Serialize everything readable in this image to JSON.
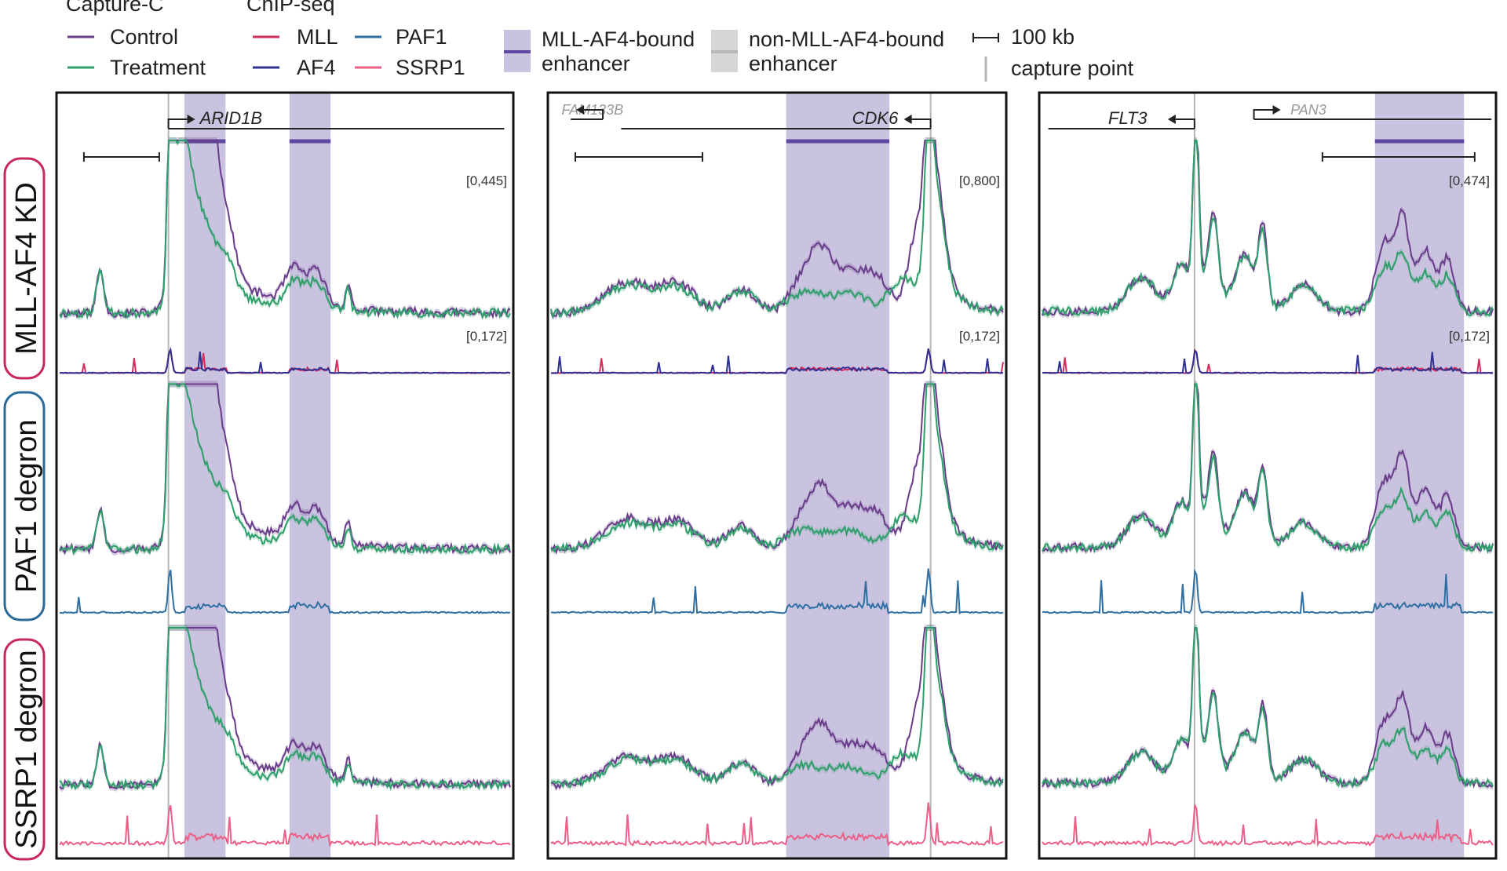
{
  "legend": {
    "capture_c_title": "Capture-C",
    "capture_c_items": [
      {
        "label": "Control",
        "color": "#6a3d8a"
      },
      {
        "label": "Treatment",
        "color": "#2e9e6a"
      }
    ],
    "chip_title": "ChIP-seq",
    "chip_items": [
      {
        "label": "MLL",
        "color": "#d42f5c"
      },
      {
        "label": "PAF1",
        "color": "#2f6fa3"
      },
      {
        "label": "AF4",
        "color": "#2e3192"
      },
      {
        "label": "SSRP1",
        "color": "#ec5f86"
      }
    ],
    "enhancer_bound_line1": "MLL-AF4-bound",
    "enhancer_bound_line2": "enhancer",
    "enhancer_nonbound_line1": "non-MLL-AF4-bound",
    "enhancer_nonbound_line2": "enhancer",
    "scale_label": "100 kb",
    "capture_point_label": "capture point"
  },
  "colors": {
    "control": "#6a3d8a",
    "treatment": "#2e9e6a",
    "mll": "#d42f5c",
    "af4": "#2e3192",
    "paf1": "#2f6fa3",
    "ssrp1": "#ec5f86",
    "enhancer_bound": "#c9c3df",
    "enhancer_line": "#5e48a0",
    "nonbound": "#d6d6d6",
    "row_kd": "#c8285a",
    "row_paf1": "#2a6a96",
    "row_ssrp1": "#c8285a"
  },
  "rows": [
    {
      "label": "MLL-AF4 KD",
      "chip": [
        "mll",
        "af4"
      ]
    },
    {
      "label": "PAF1 degron",
      "chip": [
        "paf1"
      ]
    },
    {
      "label": "SSRP1 degron",
      "chip": [
        "ssrp1"
      ]
    }
  ],
  "chart_data": [
    {
      "type": "line",
      "locus": "ARID1B",
      "genes": [
        {
          "name": "ARID1B",
          "strand": "+",
          "minor": false
        }
      ],
      "capture_c_range": "[0,445]",
      "chip_range": "[0,172]",
      "capture_point": 0.245,
      "enhancers": [
        [
          0.28,
          0.37
        ],
        [
          0.51,
          0.6
        ]
      ],
      "series": [
        {
          "name": "Control",
          "shape": "arid1b_ctrl"
        },
        {
          "name": "Treatment",
          "shape": "arid1b_trt"
        }
      ]
    },
    {
      "type": "line",
      "locus": "CDK6",
      "genes": [
        {
          "name": "FAM133B",
          "strand": "-",
          "minor": true
        },
        {
          "name": "CDK6",
          "strand": "-",
          "minor": false
        }
      ],
      "capture_c_range": "[0,800]",
      "chip_range": "[0,172]",
      "capture_point": 0.835,
      "enhancers": [
        [
          0.52,
          0.745
        ]
      ],
      "series": [
        {
          "name": "Control",
          "shape": "cdk6_ctrl"
        },
        {
          "name": "Treatment",
          "shape": "cdk6_trt"
        }
      ]
    },
    {
      "type": "line",
      "locus": "FLT3",
      "genes": [
        {
          "name": "FLT3",
          "strand": "-",
          "minor": false
        },
        {
          "name": "PAN3",
          "strand": "+",
          "minor": true
        }
      ],
      "capture_c_range": "[0,474]",
      "chip_range": "[0,172]",
      "capture_point": 0.34,
      "enhancers": [
        [
          0.735,
          0.93
        ]
      ],
      "series": [
        {
          "name": "Control",
          "shape": "flt3_ctrl"
        },
        {
          "name": "Treatment",
          "shape": "flt3_trt"
        }
      ]
    }
  ]
}
